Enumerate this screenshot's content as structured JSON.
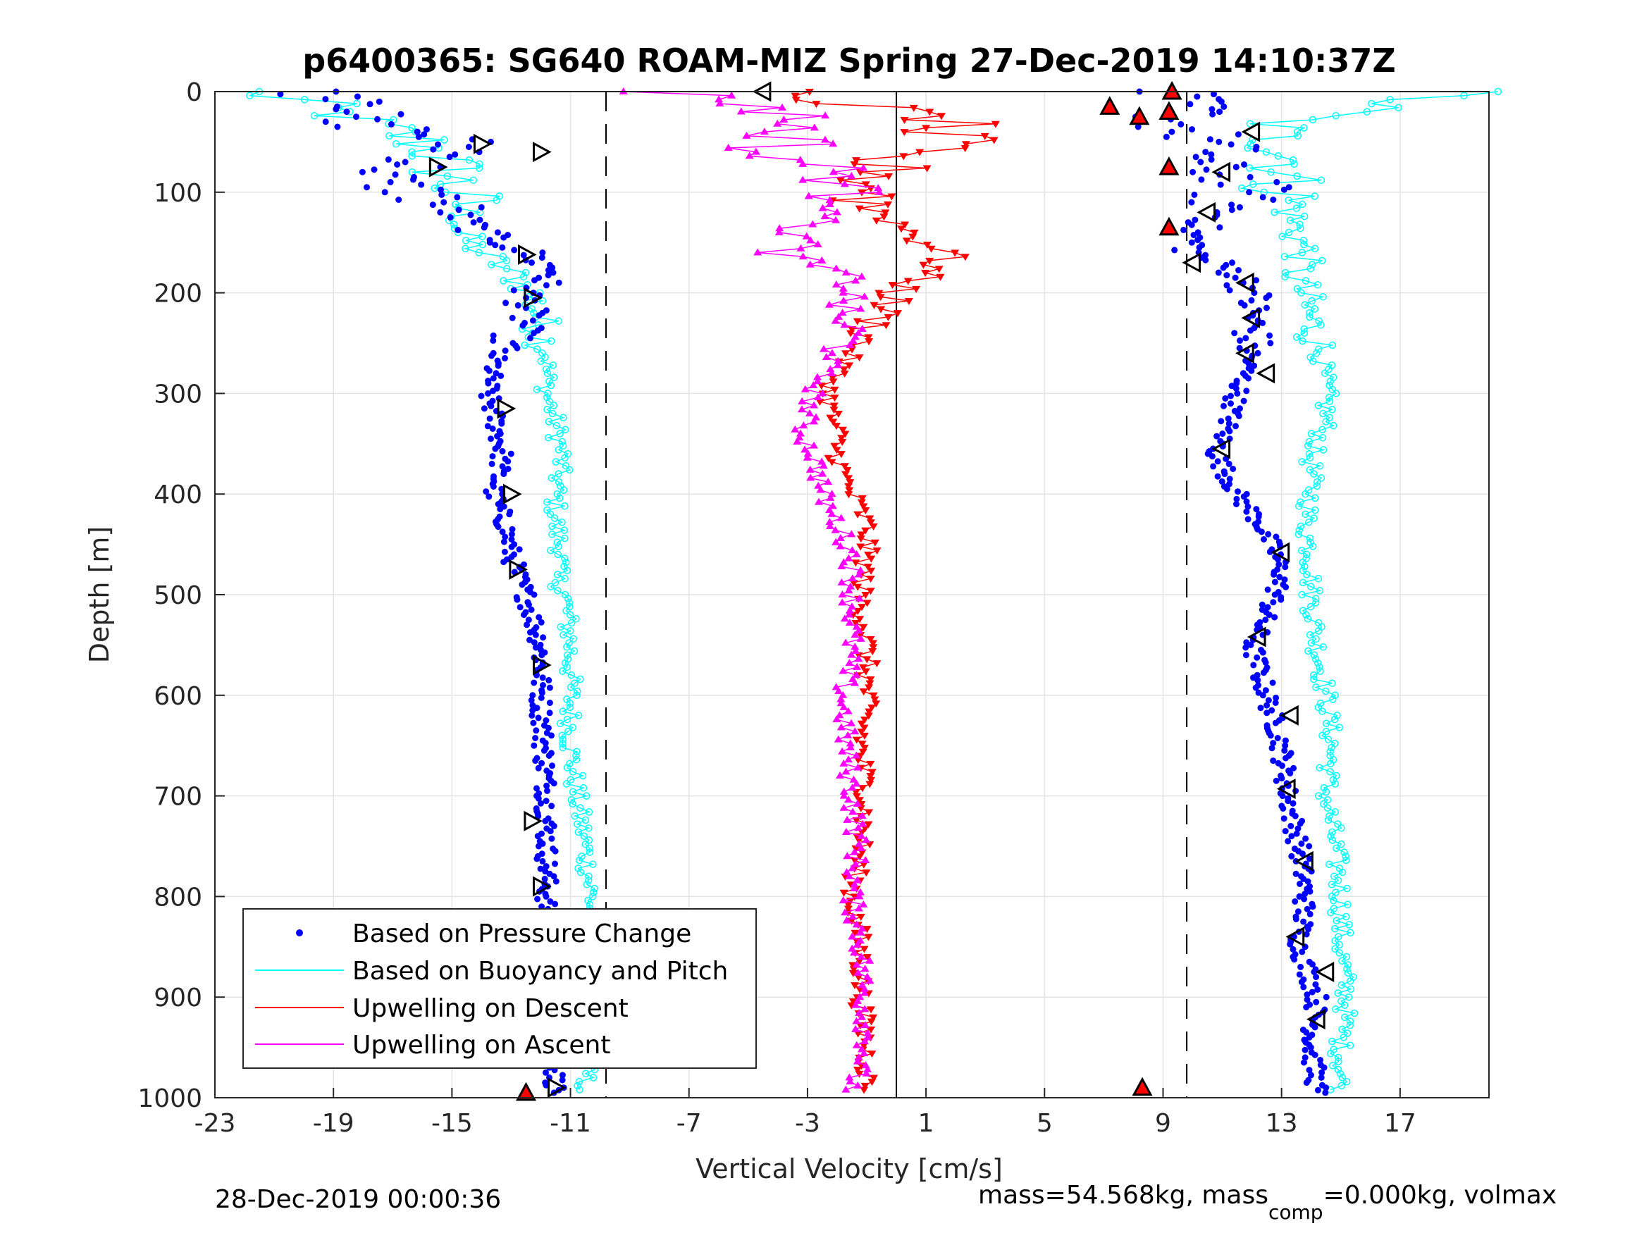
{
  "chart_data": {
    "type": "scatter",
    "title": "p6400365: SG640 ROAM-MIZ Spring 27-Dec-2019 14:10:37Z",
    "xlabel": "Vertical Velocity [cm/s]",
    "ylabel": "Depth [m]",
    "xlim": [
      -23,
      20
    ],
    "ylim": [
      0,
      1000
    ],
    "y_reversed": true,
    "grid": true,
    "xticks": [
      "-23",
      "-19",
      "-15",
      "-11",
      "-7",
      "-3",
      "1",
      "5",
      "9",
      "13",
      "17"
    ],
    "yticks": [
      "0",
      "100",
      "200",
      "300",
      "400",
      "500",
      "600",
      "700",
      "800",
      "900",
      "1000"
    ],
    "reference_lines": {
      "dashed_x": [
        -9.8,
        9.8
      ],
      "solid_x": [
        0
      ]
    },
    "legend_position": "bottom-left",
    "series": [
      {
        "name": "Based on Pressure Change",
        "color": "#0000ff",
        "marker": "dot",
        "profiles": [
          {
            "depth": [
              0,
              10,
              20,
              30,
              40,
              50,
              60,
              70,
              80,
              90,
              100,
              120,
              140,
              160,
              180,
              200,
              230,
              260,
              300,
              330,
              360,
              400,
              430,
              460,
              480,
              500,
              550,
              600,
              650,
              700,
              750,
              800,
              850,
              900,
              950,
              990
            ],
            "x": [
              -20,
              -17,
              -18,
              -19,
              -16,
              -15,
              -14.5,
              -16,
              -17,
              -17.5,
              -16,
              -15,
              -14,
              -12.5,
              -11.5,
              -12.5,
              -12.5,
              -13.5,
              -13.8,
              -13.5,
              -13.3,
              -13.6,
              -13.2,
              -13,
              -12.8,
              -12.5,
              -12,
              -12,
              -11.9,
              -11.8,
              -11.8,
              -11.8,
              -11.8,
              -11.7,
              -11.6,
              -11.5
            ]
          },
          {
            "depth": [
              0,
              10,
              20,
              30,
              40,
              50,
              60,
              70,
              80,
              90,
              100,
              120,
              140,
              160,
              180,
              200,
              230,
              260,
              300,
              330,
              360,
              400,
              430,
              460,
              480,
              500,
              550,
              600,
              650,
              700,
              750,
              800,
              850,
              900,
              950,
              990
            ],
            "x": [
              9,
              9.5,
              10,
              9,
              10,
              10.5,
              11,
              10,
              11,
              12,
              11.5,
              11,
              10,
              10,
              11.5,
              12,
              12,
              12,
              11.5,
              11.2,
              10.8,
              11.5,
              12.3,
              12.8,
              13,
              12.8,
              12,
              12.5,
              13,
              13.2,
              13.6,
              13.8,
              13.6,
              14.2,
              14,
              14.2
            ]
          }
        ]
      },
      {
        "name": "Based on Buoyancy and Pitch",
        "color": "#00ffff",
        "marker": "circle",
        "profiles": [
          {
            "depth": [
              0,
              10,
              20,
              30,
              40,
              50,
              60,
              70,
              80,
              90,
              100,
              120,
              140,
              160,
              180,
              200,
              230,
              260,
              300,
              330,
              360,
              400,
              430,
              460,
              480,
              500,
              550,
              600,
              650,
              700,
              750,
              800,
              850,
              900,
              950,
              990
            ],
            "x": [
              -22,
              -20,
              -19,
              -18,
              -17,
              -16,
              -15.5,
              -15.3,
              -15.1,
              -15,
              -14.8,
              -14.5,
              -14.8,
              -14,
              -13,
              -12.3,
              -12,
              -11.8,
              -11.8,
              -11.5,
              -11.3,
              -11.5,
              -11.5,
              -11.3,
              -11.5,
              -11.2,
              -11,
              -11,
              -11,
              -10.8,
              -10.5,
              -10.3,
              -10.3,
              -10.2,
              -10.5,
              -10.5
            ]
          },
          {
            "depth": [
              0,
              10,
              20,
              30,
              40,
              50,
              60,
              70,
              80,
              90,
              100,
              120,
              140,
              160,
              180,
              200,
              230,
              260,
              300,
              330,
              360,
              400,
              430,
              460,
              480,
              500,
              550,
              600,
              650,
              700,
              750,
              800,
              850,
              900,
              950,
              990
            ],
            "x": [
              19,
              17,
              15,
              13,
              12.5,
              13,
              13.3,
              13.5,
              13.2,
              13,
              13.2,
              13.3,
              13.5,
              13.8,
              13.5,
              13.7,
              14,
              14.3,
              14.5,
              14.5,
              14,
              14,
              13.8,
              14,
              14,
              14,
              14.2,
              14.5,
              14.7,
              14.5,
              14.8,
              15,
              15,
              15.2,
              15,
              15
            ]
          }
        ]
      },
      {
        "name": "Upwelling on Descent",
        "color": "#ff0000",
        "marker": "triangle-down",
        "depth": [
          0,
          10,
          20,
          30,
          40,
          50,
          60,
          70,
          80,
          90,
          100,
          110,
          120,
          130,
          140,
          150,
          160,
          170,
          180,
          190,
          200,
          220,
          240,
          260,
          280,
          300,
          320,
          340,
          360,
          380,
          400,
          430,
          460,
          500,
          550,
          600,
          650,
          700,
          750,
          800,
          850,
          900,
          950,
          990
        ],
        "x": [
          -4,
          -2,
          0,
          2,
          1,
          2,
          0,
          -1,
          0,
          -1,
          -0.5,
          -1,
          -0.5,
          0,
          0.5,
          1,
          1.8,
          1.5,
          1,
          0.5,
          0,
          -0.5,
          -1,
          -1.5,
          -2,
          -2.3,
          -2.2,
          -2,
          -2,
          -1.8,
          -1.5,
          -1,
          -1,
          -1.2,
          -1,
          -1,
          -1.2,
          -1,
          -1.2,
          -1.5,
          -1.2,
          -1.2,
          -1,
          -1
        ]
      },
      {
        "name": "Upwelling on Ascent",
        "color": "#ff00ff",
        "marker": "triangle-up",
        "depth": [
          0,
          10,
          20,
          30,
          40,
          50,
          60,
          70,
          80,
          90,
          100,
          110,
          120,
          130,
          140,
          150,
          160,
          170,
          180,
          190,
          200,
          220,
          240,
          260,
          280,
          300,
          320,
          340,
          360,
          380,
          400,
          430,
          460,
          500,
          550,
          600,
          650,
          700,
          750,
          800,
          850,
          900,
          950,
          990
        ],
        "x": [
          -8,
          -5,
          -4,
          -3,
          -4,
          -3,
          -5,
          -3,
          -2,
          -1.5,
          -2,
          -1,
          -1.5,
          -3,
          -3.5,
          -3,
          -4,
          -3,
          -2,
          -1.5,
          -1.5,
          -2,
          -1.5,
          -2,
          -2.5,
          -2.8,
          -3,
          -3.2,
          -2.8,
          -2.6,
          -2.5,
          -2,
          -1.5,
          -1.5,
          -1.5,
          -1.8,
          -1.7,
          -1.5,
          -1.3,
          -1.5,
          -1.2,
          -1.1,
          -1,
          -1.5
        ]
      }
    ],
    "markers": {
      "apogee_triangles_left": {
        "x": [
          -14,
          -15.5,
          -12.5,
          -12.3,
          -13.2,
          -13,
          -12.8,
          -12,
          -12.3,
          -12,
          -12.3,
          -11.8,
          -11.5,
          -12
        ],
        "depth": [
          52,
          75,
          162,
          205,
          315,
          400,
          475,
          570,
          725,
          790,
          830,
          955,
          990,
          60
        ]
      },
      "apogee_triangles_right": {
        "x": [
          -4.5,
          12,
          11,
          10.5,
          10,
          11.8,
          12,
          11.8,
          12.5,
          11,
          13,
          12.2,
          13.3,
          13.2,
          13.8,
          13.5,
          14.5,
          14.2
        ],
        "depth": [
          0,
          40,
          80,
          120,
          170,
          190,
          225,
          260,
          280,
          355,
          458,
          542,
          620,
          693,
          765,
          840,
          875,
          922
        ]
      },
      "red_filled_triangles": {
        "x": [
          7.2,
          8.2,
          9.3,
          9.2,
          9.2,
          9.2,
          8.3,
          -12.5
        ],
        "depth": [
          15,
          25,
          0,
          20,
          75,
          135,
          990,
          995
        ]
      }
    }
  },
  "legend": {
    "entries": [
      {
        "label": "Based on Pressure Change",
        "color": "#0000ff",
        "style": "dot"
      },
      {
        "label": "Based on Buoyancy and Pitch",
        "color": "#00ffff",
        "style": "line"
      },
      {
        "label": "Upwelling on Descent",
        "color": "#ff0000",
        "style": "line"
      },
      {
        "label": "Upwelling on Ascent",
        "color": "#ff00ff",
        "style": "line"
      }
    ]
  },
  "footer": {
    "timestamp": "28-Dec-2019 00:00:36",
    "mass_part1": "mass=54.568kg, mass",
    "mass_sub": "comp",
    "mass_part2": "=0.000kg, volmax"
  }
}
